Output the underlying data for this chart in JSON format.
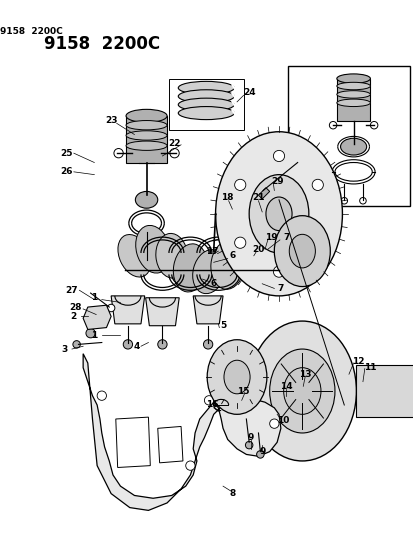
{
  "title": "9158  2200C",
  "bg_color": "#ffffff",
  "line_color": "#000000",
  "text_color": "#000000",
  "title_fontsize": 12,
  "label_fontsize": 6.5,
  "fig_width": 4.14,
  "fig_height": 5.33,
  "dpi": 100
}
